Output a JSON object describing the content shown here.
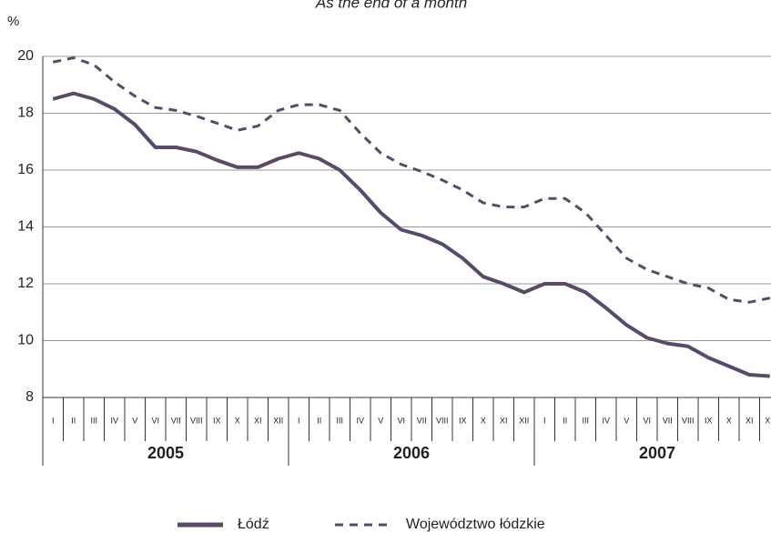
{
  "chart_data": {
    "type": "line",
    "title": "As the end of a month",
    "y_label": "%",
    "categories": [
      "I",
      "II",
      "III",
      "IV",
      "V",
      "VI",
      "VII",
      "VIII",
      "IX",
      "X",
      "XI",
      "XII",
      "I",
      "II",
      "III",
      "IV",
      "V",
      "VI",
      "VII",
      "VIII",
      "IX",
      "X",
      "XI",
      "XII",
      "I",
      "II",
      "III",
      "IV",
      "V",
      "VI",
      "VII",
      "VIII",
      "IX",
      "X",
      "XI",
      "XII"
    ],
    "years": [
      "2005",
      "2006",
      "2007"
    ],
    "series": [
      {
        "name": "Łódź",
        "color": "#584a68",
        "style": "solid",
        "values": [
          18.5,
          18.7,
          18.5,
          18.15,
          17.6,
          16.8,
          16.8,
          16.65,
          16.35,
          16.1,
          16.1,
          16.4,
          16.6,
          16.4,
          16.0,
          15.3,
          14.5,
          13.9,
          13.7,
          13.4,
          12.9,
          12.25,
          12.0,
          11.7,
          12.0,
          12.0,
          11.7,
          11.15,
          10.55,
          10.1,
          9.9,
          9.8,
          9.4,
          9.1,
          8.8,
          8.75
        ]
      },
      {
        "name": "Województwo łódzkie",
        "color": "#584a68",
        "style": "dashed",
        "values": [
          19.8,
          19.95,
          19.7,
          19.1,
          18.6,
          18.2,
          18.1,
          17.9,
          17.65,
          17.4,
          17.55,
          18.1,
          18.3,
          18.3,
          18.1,
          17.3,
          16.6,
          16.2,
          15.95,
          15.65,
          15.3,
          14.85,
          14.7,
          14.7,
          15.0,
          15.0,
          14.5,
          13.7,
          12.9,
          12.5,
          12.25,
          12.0,
          11.85,
          11.45,
          11.35,
          11.5
        ]
      }
    ],
    "ylim": [
      8,
      20
    ],
    "yticks": [
      8,
      10,
      12,
      14,
      16,
      18,
      20
    ],
    "grid": true
  }
}
